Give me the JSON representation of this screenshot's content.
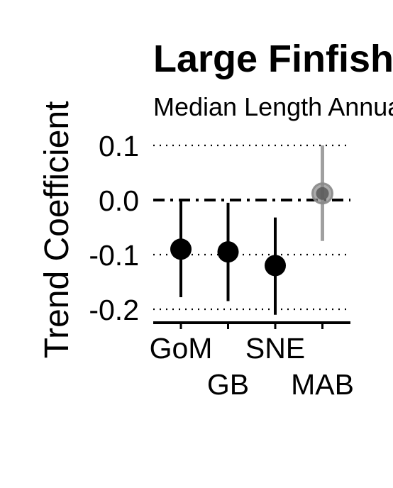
{
  "chart_data": {
    "type": "scatter",
    "title": "Large Finfish",
    "subtitle": "Median Length Annual Trend",
    "ylabel": "Trend Coefficient",
    "xlabel": "",
    "categories": [
      "GoM",
      "GB",
      "SNE",
      "MAB"
    ],
    "y_ticks": [
      "0.1",
      "0.0",
      "-0.1",
      "-0.2"
    ],
    "ylim": [
      -0.225,
      0.12
    ],
    "grid": "horizontal dotted",
    "zero_line": "dash-dot",
    "points": [
      {
        "region": "GoM",
        "estimate": -0.09,
        "lower": -0.178,
        "upper": 0.0,
        "color": "#000000",
        "significant": true
      },
      {
        "region": "GB",
        "estimate": -0.095,
        "lower": -0.185,
        "upper": -0.005,
        "color": "#000000",
        "significant": true
      },
      {
        "region": "SNE",
        "estimate": -0.12,
        "lower": -0.21,
        "upper": -0.032,
        "color": "#000000",
        "significant": true
      },
      {
        "region": "MAB",
        "estimate": 0.012,
        "lower": -0.075,
        "upper": 0.1,
        "color": "#888888",
        "significant": false
      }
    ]
  }
}
